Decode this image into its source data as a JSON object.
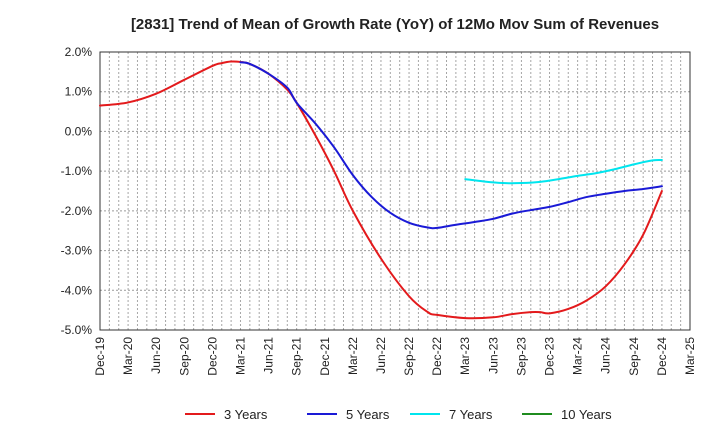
{
  "chart_data": {
    "type": "line",
    "title": "[2831]  Trend of Mean of Growth Rate (YoY) of 12Mo Mov Sum of Revenues",
    "xlabel": "",
    "ylabel": "",
    "ylim": [
      -5.0,
      2.0
    ],
    "y_ticks": [
      2.0,
      1.0,
      0.0,
      -1.0,
      -2.0,
      -3.0,
      -4.0,
      -5.0
    ],
    "y_tick_labels": [
      "2.0%",
      "1.0%",
      "0.0%",
      "-1.0%",
      "-2.0%",
      "-3.0%",
      "-4.0%",
      "-5.0%"
    ],
    "x_tick_labels": [
      "Dec-19",
      "Mar-20",
      "Jun-20",
      "Sep-20",
      "Dec-20",
      "Mar-21",
      "Jun-21",
      "Sep-21",
      "Dec-21",
      "Mar-22",
      "Jun-22",
      "Sep-22",
      "Dec-22",
      "Mar-23",
      "Jun-23",
      "Sep-23",
      "Dec-23",
      "Mar-24",
      "Jun-24",
      "Sep-24",
      "Dec-24",
      "Mar-25"
    ],
    "x_range_months": [
      0,
      63
    ],
    "grid": "dashed",
    "legend_position": "bottom",
    "series": [
      {
        "name": "3 Years",
        "color": "#e31a1c",
        "points": [
          [
            0,
            0.65
          ],
          [
            3,
            0.73
          ],
          [
            6,
            0.95
          ],
          [
            9,
            1.3
          ],
          [
            12,
            1.65
          ],
          [
            13,
            1.72
          ],
          [
            14,
            1.76
          ],
          [
            15,
            1.75
          ],
          [
            16,
            1.7
          ],
          [
            18,
            1.45
          ],
          [
            20,
            1.05
          ],
          [
            21,
            0.72
          ],
          [
            23,
            -0.1
          ],
          [
            25,
            -1.0
          ],
          [
            27,
            -2.0
          ],
          [
            30,
            -3.2
          ],
          [
            33,
            -4.15
          ],
          [
            35,
            -4.55
          ],
          [
            36,
            -4.62
          ],
          [
            39,
            -4.7
          ],
          [
            42,
            -4.68
          ],
          [
            44,
            -4.6
          ],
          [
            46,
            -4.55
          ],
          [
            47,
            -4.55
          ],
          [
            48,
            -4.58
          ],
          [
            50,
            -4.47
          ],
          [
            52,
            -4.25
          ],
          [
            54,
            -3.9
          ],
          [
            56,
            -3.35
          ],
          [
            58,
            -2.6
          ],
          [
            60,
            -1.5
          ]
        ]
      },
      {
        "name": "5 Years",
        "color": "#1a1ad6",
        "points": [
          [
            15,
            1.74
          ],
          [
            16,
            1.7
          ],
          [
            18,
            1.45
          ],
          [
            20,
            1.1
          ],
          [
            21,
            0.72
          ],
          [
            23,
            0.2
          ],
          [
            25,
            -0.4
          ],
          [
            27,
            -1.1
          ],
          [
            29,
            -1.65
          ],
          [
            31,
            -2.05
          ],
          [
            33,
            -2.3
          ],
          [
            35,
            -2.42
          ],
          [
            36,
            -2.43
          ],
          [
            38,
            -2.35
          ],
          [
            40,
            -2.28
          ],
          [
            42,
            -2.2
          ],
          [
            44,
            -2.07
          ],
          [
            46,
            -1.98
          ],
          [
            48,
            -1.9
          ],
          [
            50,
            -1.78
          ],
          [
            52,
            -1.65
          ],
          [
            54,
            -1.57
          ],
          [
            56,
            -1.5
          ],
          [
            58,
            -1.45
          ],
          [
            60,
            -1.38
          ]
        ]
      },
      {
        "name": "7 Years",
        "color": "#00e5ee",
        "points": [
          [
            39,
            -1.2
          ],
          [
            41,
            -1.26
          ],
          [
            43,
            -1.3
          ],
          [
            45,
            -1.3
          ],
          [
            47,
            -1.27
          ],
          [
            49,
            -1.2
          ],
          [
            51,
            -1.12
          ],
          [
            53,
            -1.05
          ],
          [
            55,
            -0.95
          ],
          [
            57,
            -0.83
          ],
          [
            59,
            -0.73
          ],
          [
            60,
            -0.72
          ]
        ]
      },
      {
        "name": "10 Years",
        "color": "#1f8c1f",
        "points": []
      }
    ]
  }
}
